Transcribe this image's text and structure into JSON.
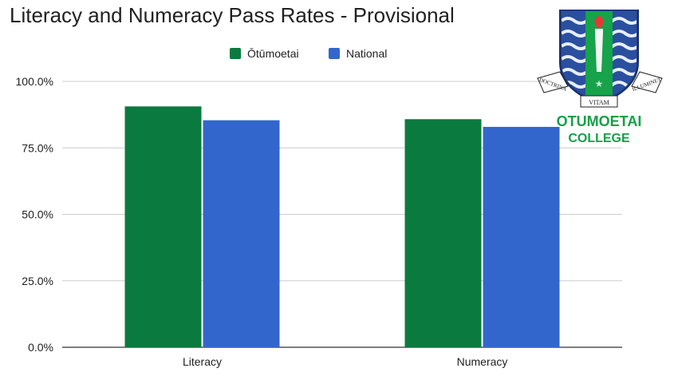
{
  "chart_data": {
    "type": "bar",
    "title": "Literacy and Numeracy Pass Rates - Provisional",
    "categories": [
      "Literacy",
      "Numeracy"
    ],
    "series": [
      {
        "name": "Ōtūmoetai",
        "values": [
          90.6,
          85.8
        ],
        "color": "#0b7a3e"
      },
      {
        "name": "National",
        "values": [
          85.4,
          82.9
        ],
        "color": "#3366cc"
      }
    ],
    "y_ticks": [
      "0.0%",
      "25.0%",
      "50.0%",
      "75.0%",
      "100.0%"
    ],
    "ylim": [
      0,
      100
    ],
    "xlabel": "",
    "ylabel": "",
    "grid": true,
    "legend_position": "top-center"
  },
  "logo": {
    "name_line1": "OTUMOETAI",
    "name_line2": "COLLEGE",
    "motto_left": "DOCTRINA",
    "motto_center": "VITAM",
    "motto_right": "ILLUMINET",
    "brand_color": "#14a046"
  }
}
